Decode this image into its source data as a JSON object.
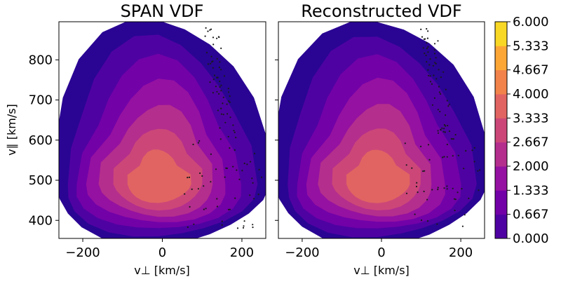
{
  "chart_data": [
    {
      "type": "heatmap",
      "title": "SPAN VDF",
      "xlabel": "v⊥ [km/s]",
      "ylabel": "v∥ [km/s]",
      "xlim": [
        -260,
        260
      ],
      "ylim": [
        355,
        895
      ],
      "xticks": [
        -200,
        0,
        200
      ],
      "yticks": [
        400,
        500,
        600,
        700,
        800
      ],
      "grid": false,
      "peak": {
        "x": -10,
        "y": 490,
        "level": 3.6
      },
      "marker_color": "#1a1a1a"
    },
    {
      "type": "heatmap",
      "title": "Reconstructed VDF",
      "xlabel": "v⊥ [km/s]",
      "ylabel": "",
      "xlim": [
        -260,
        260
      ],
      "ylim": [
        355,
        895
      ],
      "xticks": [
        -200,
        0,
        200
      ],
      "yticks": [
        400,
        500,
        600,
        700,
        800
      ],
      "grid": false,
      "peak": {
        "x": -10,
        "y": 490,
        "level": 3.5
      },
      "marker_color": "#1a1a1a"
    }
  ],
  "colorbar": {
    "min": 0.0,
    "max": 6.0,
    "labels": [
      "0.000",
      "0.667",
      "1.333",
      "2.000",
      "2.667",
      "3.333",
      "4.000",
      "4.667",
      "5.333",
      "6.000"
    ],
    "colors": [
      "#2a0593",
      "#4f02a2",
      "#7201a8",
      "#9511a1",
      "#b42e8d",
      "#cc4778",
      "#e16462",
      "#f1834b",
      "#fca636",
      "#f9d725",
      "#f0f921"
    ]
  }
}
